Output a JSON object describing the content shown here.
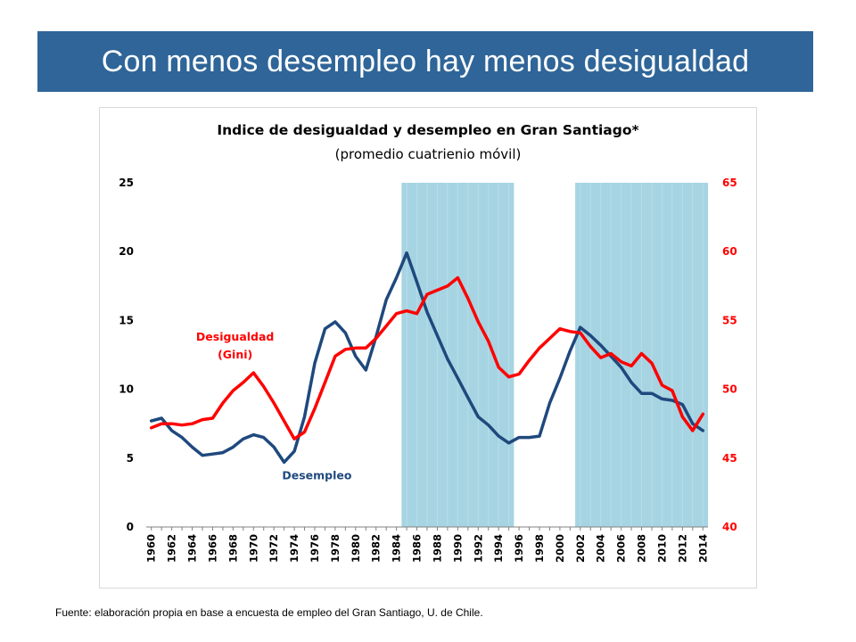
{
  "slide": {
    "title": "Con menos desempleo hay menos desigualdad",
    "source": "Fuente: elaboración propia en base a encuesta de empleo del Gran Santiago, U. de Chile."
  },
  "colors": {
    "banner": "#2f6598",
    "desempleo": "#1f497d",
    "desigualdad": "#ff0000",
    "shade": "#a6d4e2"
  },
  "chart_data": {
    "type": "line",
    "title": "Indice de desigualdad y desempleo en Gran Santiago*",
    "subtitle": "(promedio cuatrienio móvil)",
    "xlabel": "",
    "x_tick_labels": [
      "1960",
      "1962",
      "1964",
      "1966",
      "1968",
      "1970",
      "1972",
      "1974",
      "1976",
      "1978",
      "1980",
      "1982",
      "1984",
      "1986",
      "1988",
      "1990",
      "1992",
      "1994",
      "1996",
      "1998",
      "2000",
      "2002",
      "2004",
      "2006",
      "2008",
      "2010",
      "2012",
      "2014"
    ],
    "x_range": [
      1960,
      2014
    ],
    "y_left": {
      "range": [
        0,
        25
      ],
      "ticks": [
        0,
        5,
        10,
        15,
        20,
        25
      ],
      "color": "#1f497d"
    },
    "y_right": {
      "range": [
        40,
        65
      ],
      "ticks": [
        40,
        45,
        50,
        55,
        60,
        65
      ],
      "color": "#ff0000"
    },
    "shaded_periods": [
      [
        1984.5,
        1995.5
      ],
      [
        2001.5,
        2014.5
      ]
    ],
    "grid": false,
    "series": [
      {
        "name": "Desempleo",
        "label": "Desempleo",
        "axis": "left",
        "color": "#1f497d",
        "x": [
          1960,
          1961,
          1962,
          1963,
          1964,
          1965,
          1966,
          1967,
          1968,
          1969,
          1970,
          1971,
          1972,
          1973,
          1974,
          1975,
          1976,
          1977,
          1978,
          1979,
          1980,
          1981,
          1982,
          1983,
          1984,
          1985,
          1986,
          1987,
          1988,
          1989,
          1990,
          1991,
          1992,
          1993,
          1994,
          1995,
          1996,
          1997,
          1998,
          1999,
          2000,
          2001,
          2002,
          2003,
          2004,
          2005,
          2006,
          2007,
          2008,
          2009,
          2010,
          2011,
          2012,
          2013,
          2014
        ],
        "values": [
          7.7,
          7.9,
          7.0,
          6.5,
          5.8,
          5.2,
          5.3,
          5.4,
          5.8,
          6.4,
          6.7,
          6.5,
          5.8,
          4.7,
          5.5,
          8.0,
          11.9,
          14.4,
          14.9,
          14.1,
          12.4,
          11.4,
          13.8,
          16.5,
          18.1,
          19.9,
          17.8,
          15.6,
          13.9,
          12.2,
          10.8,
          9.4,
          8.0,
          7.4,
          6.6,
          6.1,
          6.5,
          6.5,
          6.6,
          9.0,
          10.8,
          12.8,
          14.5,
          13.9,
          13.2,
          12.4,
          11.6,
          10.5,
          9.7,
          9.7,
          9.3,
          9.2,
          8.9,
          7.5,
          7.0
        ]
      },
      {
        "name": "Desigualdad (Gini)",
        "label_lines": [
          "Desigualdad",
          "(Gini)"
        ],
        "axis": "right",
        "color": "#ff0000",
        "x": [
          1960,
          1961,
          1962,
          1963,
          1964,
          1965,
          1966,
          1967,
          1968,
          1969,
          1970,
          1971,
          1972,
          1973,
          1974,
          1975,
          1976,
          1977,
          1978,
          1979,
          1980,
          1981,
          1982,
          1983,
          1984,
          1985,
          1986,
          1987,
          1988,
          1989,
          1990,
          1991,
          1992,
          1993,
          1994,
          1995,
          1996,
          1997,
          1998,
          1999,
          2000,
          2001,
          2002,
          2003,
          2004,
          2005,
          2006,
          2007,
          2008,
          2009,
          2010,
          2011,
          2012,
          2013,
          2014
        ],
        "values": [
          47.2,
          47.5,
          47.5,
          47.4,
          47.5,
          47.8,
          47.9,
          49.0,
          49.9,
          50.5,
          51.2,
          50.2,
          49.0,
          47.7,
          46.4,
          46.9,
          48.6,
          50.5,
          52.4,
          52.9,
          53.0,
          53.0,
          53.7,
          54.6,
          55.5,
          55.7,
          55.5,
          56.9,
          57.2,
          57.5,
          58.1,
          56.6,
          54.9,
          53.5,
          51.6,
          50.9,
          51.1,
          52.1,
          53.0,
          53.7,
          54.4,
          54.2,
          54.1,
          53.1,
          52.3,
          52.6,
          52.0,
          51.7,
          52.6,
          51.9,
          50.3,
          49.9,
          48.0,
          47.0,
          48.2
        ]
      }
    ]
  }
}
